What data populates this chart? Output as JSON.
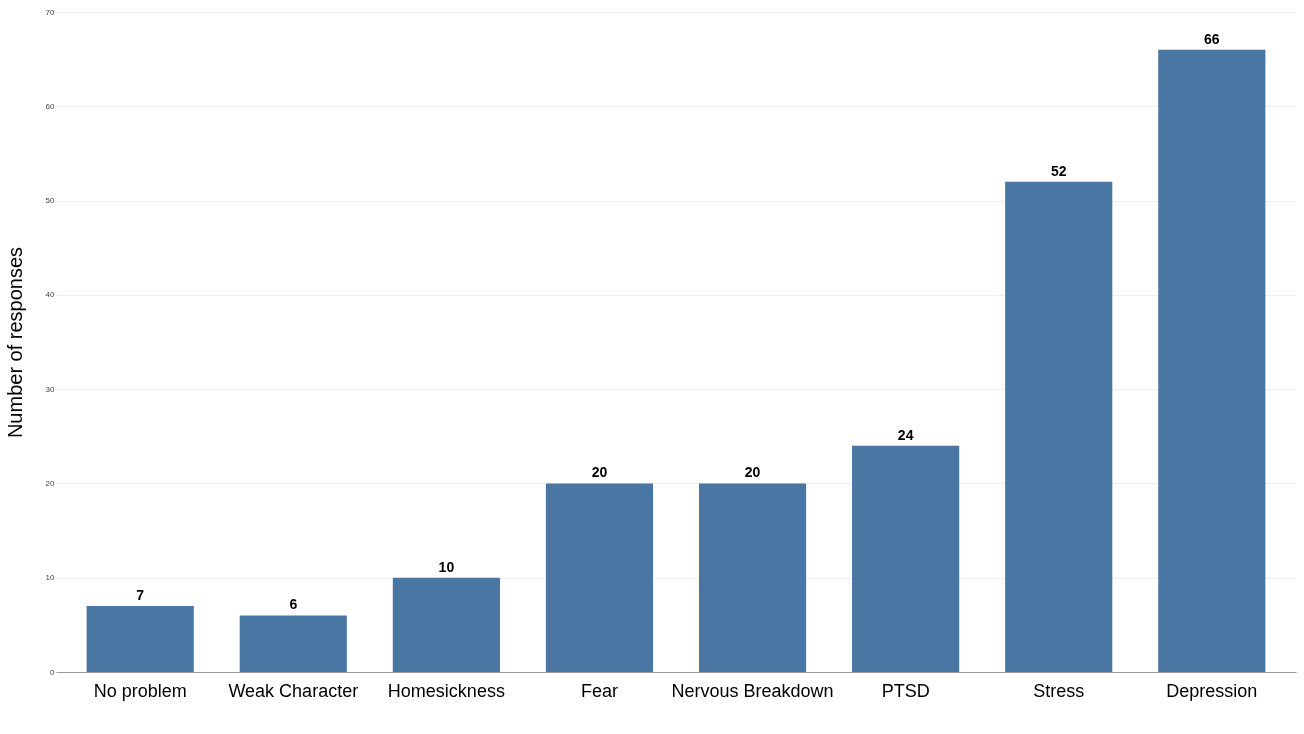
{
  "chart_data": {
    "type": "bar",
    "ylabel": "Number of responses",
    "categories": [
      "No problem",
      "Weak Character",
      "Homesickness",
      "Fear",
      "Nervous Breakdown",
      "PTSD",
      "Stress",
      "Depression"
    ],
    "values": [
      7,
      6,
      10,
      20,
      20,
      24,
      52,
      66
    ],
    "color": "#4a76a3",
    "ylim": [
      0,
      70
    ],
    "yticks": [
      0,
      10,
      20,
      30,
      40,
      50,
      60,
      70
    ],
    "grid": "y",
    "data_labels": true
  }
}
